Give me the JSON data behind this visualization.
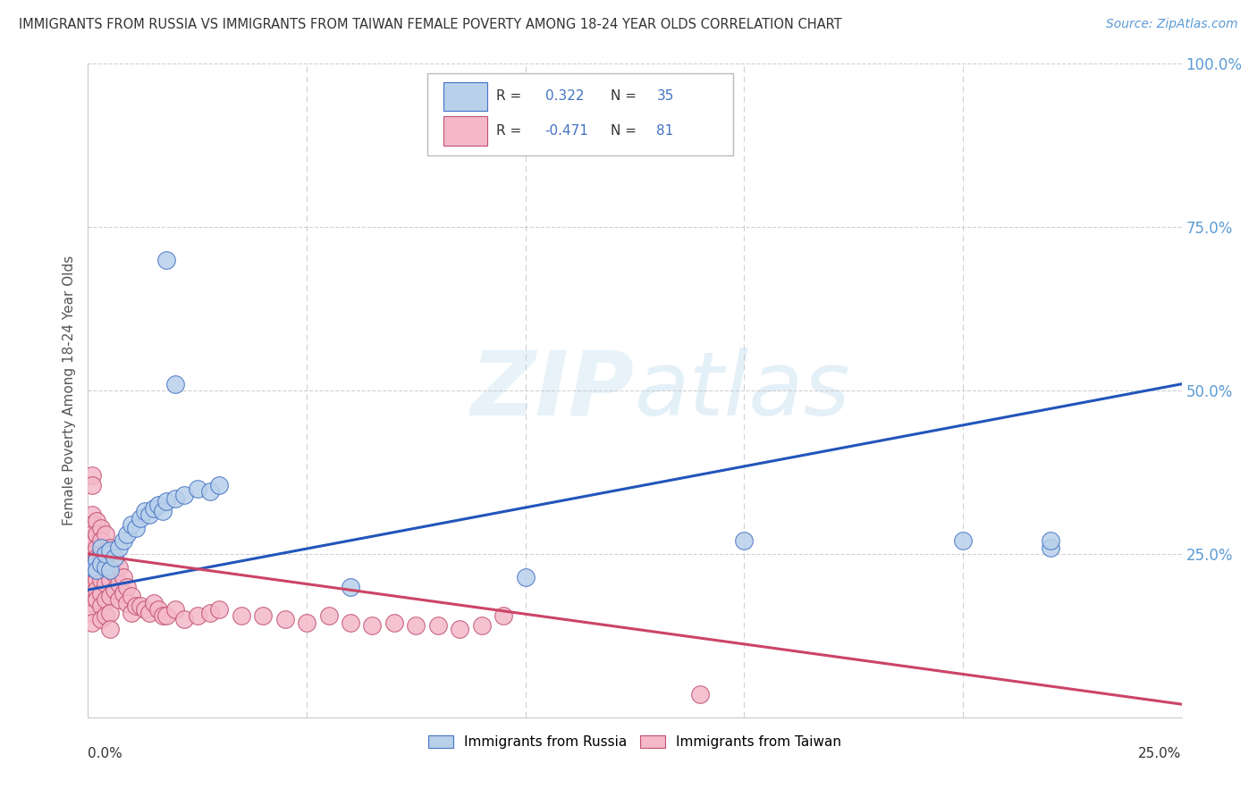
{
  "title": "IMMIGRANTS FROM RUSSIA VS IMMIGRANTS FROM TAIWAN FEMALE POVERTY AMONG 18-24 YEAR OLDS CORRELATION CHART",
  "source": "Source: ZipAtlas.com",
  "ylabel": "Female Poverty Among 18-24 Year Olds",
  "xlim": [
    0,
    0.25
  ],
  "ylim": [
    0,
    1.0
  ],
  "watermark_zip": "ZIP",
  "watermark_atlas": "atlas",
  "russia_R": "0.322",
  "russia_N": "35",
  "taiwan_R": "-0.471",
  "taiwan_N": "81",
  "russia_dot_color": "#b8d0ea",
  "russia_dot_edge": "#4472c4",
  "taiwan_dot_color": "#f4b8ca",
  "taiwan_dot_edge": "#c0506e",
  "russia_line_color": "#2255bb",
  "taiwan_line_color": "#cc4466",
  "grid_color": "#cccccc",
  "right_tick_color": "#5b9bd5",
  "russia_pts": [
    [
      0.001,
      0.23
    ],
    [
      0.002,
      0.24
    ],
    [
      0.002,
      0.225
    ],
    [
      0.003,
      0.26
    ],
    [
      0.003,
      0.235
    ],
    [
      0.004,
      0.23
    ],
    [
      0.004,
      0.25
    ],
    [
      0.005,
      0.255
    ],
    [
      0.005,
      0.225
    ],
    [
      0.006,
      0.245
    ],
    [
      0.007,
      0.26
    ],
    [
      0.008,
      0.27
    ],
    [
      0.009,
      0.28
    ],
    [
      0.01,
      0.295
    ],
    [
      0.011,
      0.29
    ],
    [
      0.012,
      0.305
    ],
    [
      0.013,
      0.315
    ],
    [
      0.014,
      0.31
    ],
    [
      0.015,
      0.32
    ],
    [
      0.016,
      0.325
    ],
    [
      0.017,
      0.315
    ],
    [
      0.018,
      0.33
    ],
    [
      0.02,
      0.335
    ],
    [
      0.022,
      0.34
    ],
    [
      0.025,
      0.35
    ],
    [
      0.028,
      0.345
    ],
    [
      0.03,
      0.355
    ],
    [
      0.02,
      0.51
    ],
    [
      0.018,
      0.7
    ],
    [
      0.06,
      0.2
    ],
    [
      0.1,
      0.215
    ],
    [
      0.15,
      0.27
    ],
    [
      0.2,
      0.27
    ],
    [
      0.22,
      0.26
    ],
    [
      0.22,
      0.27
    ]
  ],
  "taiwan_pts": [
    [
      0.001,
      0.31
    ],
    [
      0.001,
      0.295
    ],
    [
      0.001,
      0.28
    ],
    [
      0.001,
      0.265
    ],
    [
      0.001,
      0.25
    ],
    [
      0.001,
      0.235
    ],
    [
      0.001,
      0.22
    ],
    [
      0.001,
      0.205
    ],
    [
      0.001,
      0.19
    ],
    [
      0.001,
      0.175
    ],
    [
      0.001,
      0.16
    ],
    [
      0.001,
      0.145
    ],
    [
      0.002,
      0.3
    ],
    [
      0.002,
      0.28
    ],
    [
      0.002,
      0.26
    ],
    [
      0.002,
      0.245
    ],
    [
      0.002,
      0.225
    ],
    [
      0.002,
      0.21
    ],
    [
      0.002,
      0.195
    ],
    [
      0.002,
      0.18
    ],
    [
      0.003,
      0.29
    ],
    [
      0.003,
      0.27
    ],
    [
      0.003,
      0.25
    ],
    [
      0.003,
      0.23
    ],
    [
      0.003,
      0.21
    ],
    [
      0.003,
      0.19
    ],
    [
      0.003,
      0.17
    ],
    [
      0.003,
      0.15
    ],
    [
      0.004,
      0.28
    ],
    [
      0.004,
      0.255
    ],
    [
      0.004,
      0.23
    ],
    [
      0.004,
      0.205
    ],
    [
      0.004,
      0.18
    ],
    [
      0.004,
      0.155
    ],
    [
      0.005,
      0.26
    ],
    [
      0.005,
      0.235
    ],
    [
      0.005,
      0.21
    ],
    [
      0.005,
      0.185
    ],
    [
      0.005,
      0.16
    ],
    [
      0.005,
      0.135
    ],
    [
      0.006,
      0.245
    ],
    [
      0.006,
      0.22
    ],
    [
      0.006,
      0.195
    ],
    [
      0.007,
      0.23
    ],
    [
      0.007,
      0.205
    ],
    [
      0.007,
      0.18
    ],
    [
      0.008,
      0.215
    ],
    [
      0.008,
      0.19
    ],
    [
      0.009,
      0.2
    ],
    [
      0.009,
      0.175
    ],
    [
      0.01,
      0.185
    ],
    [
      0.01,
      0.16
    ],
    [
      0.011,
      0.17
    ],
    [
      0.012,
      0.17
    ],
    [
      0.013,
      0.165
    ],
    [
      0.014,
      0.16
    ],
    [
      0.015,
      0.175
    ],
    [
      0.016,
      0.165
    ],
    [
      0.017,
      0.155
    ],
    [
      0.018,
      0.155
    ],
    [
      0.02,
      0.165
    ],
    [
      0.022,
      0.15
    ],
    [
      0.025,
      0.155
    ],
    [
      0.028,
      0.16
    ],
    [
      0.03,
      0.165
    ],
    [
      0.035,
      0.155
    ],
    [
      0.04,
      0.155
    ],
    [
      0.045,
      0.15
    ],
    [
      0.05,
      0.145
    ],
    [
      0.055,
      0.155
    ],
    [
      0.06,
      0.145
    ],
    [
      0.065,
      0.14
    ],
    [
      0.07,
      0.145
    ],
    [
      0.075,
      0.14
    ],
    [
      0.08,
      0.14
    ],
    [
      0.085,
      0.135
    ],
    [
      0.09,
      0.14
    ],
    [
      0.095,
      0.155
    ],
    [
      0.14,
      0.035
    ],
    [
      0.001,
      0.37
    ],
    [
      0.001,
      0.355
    ]
  ],
  "russia_trend_x": [
    0.0,
    0.25
  ],
  "russia_trend_y": [
    0.195,
    0.51
  ],
  "taiwan_trend_x": [
    0.0,
    0.25
  ],
  "taiwan_trend_y": [
    0.25,
    0.02
  ],
  "yticks": [
    0.0,
    0.25,
    0.5,
    0.75,
    1.0
  ],
  "ytick_labels": [
    "",
    "25.0%",
    "50.0%",
    "75.0%",
    "100.0%"
  ],
  "xticks": [
    0.0,
    0.05,
    0.1,
    0.15,
    0.2,
    0.25
  ]
}
